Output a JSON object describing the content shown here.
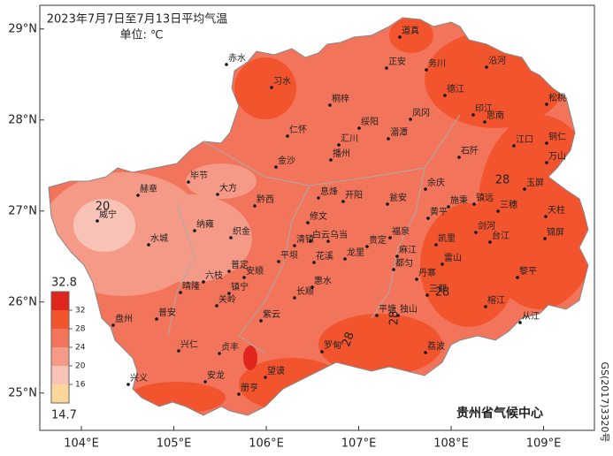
{
  "map": {
    "title": "2023年7月7日至7月13日平均气温",
    "unit": "单位: ℃",
    "xlim": [
      103.55,
      109.55
    ],
    "ylim": [
      24.59,
      29.26
    ],
    "lat_ticks": [
      {
        "value": 29,
        "label": "29°N"
      },
      {
        "value": 28,
        "label": "28°N"
      },
      {
        "value": 27,
        "label": "27°N"
      },
      {
        "value": 26,
        "label": "26°N"
      },
      {
        "value": 25,
        "label": "25°N"
      }
    ],
    "lon_ticks": [
      {
        "value": 104,
        "label": "104°E"
      },
      {
        "value": 105,
        "label": "105°E"
      },
      {
        "value": 106,
        "label": "106°E"
      },
      {
        "value": 107,
        "label": "107°E"
      },
      {
        "value": 108,
        "label": "108°E"
      },
      {
        "value": 109,
        "label": "109°E"
      }
    ],
    "legend": {
      "max": 32.8,
      "min": 14.7,
      "ticks": [
        32,
        28,
        24,
        20,
        16
      ],
      "colors": [
        "#e0261c",
        "#f2552e",
        "#f2745a",
        "#f59a86",
        "#f8c3b6",
        "#fbd89a"
      ]
    },
    "contour_labels": [
      "20",
      "28",
      "28",
      "28",
      "28"
    ],
    "cities": [
      "道真",
      "正安",
      "务川",
      "沿河",
      "赤水",
      "习水",
      "桐梓",
      "德江",
      "印江",
      "松桃",
      "凤冈",
      "绥阳",
      "思南",
      "仁怀",
      "湄潭",
      "汇川",
      "播州",
      "江口",
      "铜仁",
      "万山",
      "石阡",
      "金沙",
      "玉屏",
      "余庆",
      "施秉",
      "镇远",
      "三穗",
      "天柱",
      "黔西",
      "大方",
      "毕节",
      "赫章",
      "威宁",
      "息烽",
      "开阳",
      "瓮安",
      "黄平",
      "剑河",
      "锦屏",
      "纳雍",
      "织金",
      "修文",
      "台江",
      "白云",
      "乌当",
      "福泉",
      "清镇",
      "贵定",
      "水城",
      "龙里",
      "麻江",
      "丹寨",
      "雷山",
      "平坝",
      "花溪",
      "六枝",
      "普定",
      "安顺",
      "都匀",
      "惠水",
      "长顺",
      "镇宁",
      "关岭",
      "黎平",
      "榕江",
      "三都",
      "晴隆",
      "盘州",
      "普安",
      "紫云",
      "平塘",
      "独山",
      "从江",
      "罗甸",
      "荔波",
      "兴仁",
      "贞丰",
      "安龙",
      "兴义",
      "望谟",
      "册亨",
      "凯里"
    ],
    "footer": "贵州省气候中心",
    "approval": "GS(2017)3320号"
  }
}
